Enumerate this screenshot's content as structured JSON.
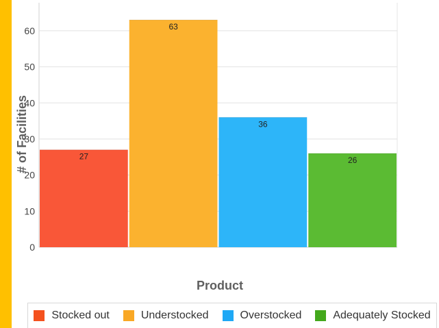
{
  "page": {
    "accent_color": "#FFC000"
  },
  "chart_data": {
    "type": "bar",
    "categories": [
      "Stocked out",
      "Understocked",
      "Overstocked",
      "Adequately Stocked"
    ],
    "values": [
      27,
      63,
      36,
      26
    ],
    "colors": [
      "#F95738",
      "#FBB22F",
      "#2DB5F9",
      "#5BBB33"
    ],
    "legend_colors": [
      "#F4511E",
      "#F9A825",
      "#1EA8F5",
      "#43A81C"
    ],
    "data_labels": [
      "27",
      "63",
      "36",
      "26"
    ],
    "title": "",
    "xlabel": "Product",
    "ylabel": "# of Facilities",
    "ylim": [
      0,
      67
    ],
    "yticks": [
      0,
      10,
      20,
      30,
      40,
      50,
      60
    ],
    "grid": true,
    "legend_position": "bottom"
  }
}
